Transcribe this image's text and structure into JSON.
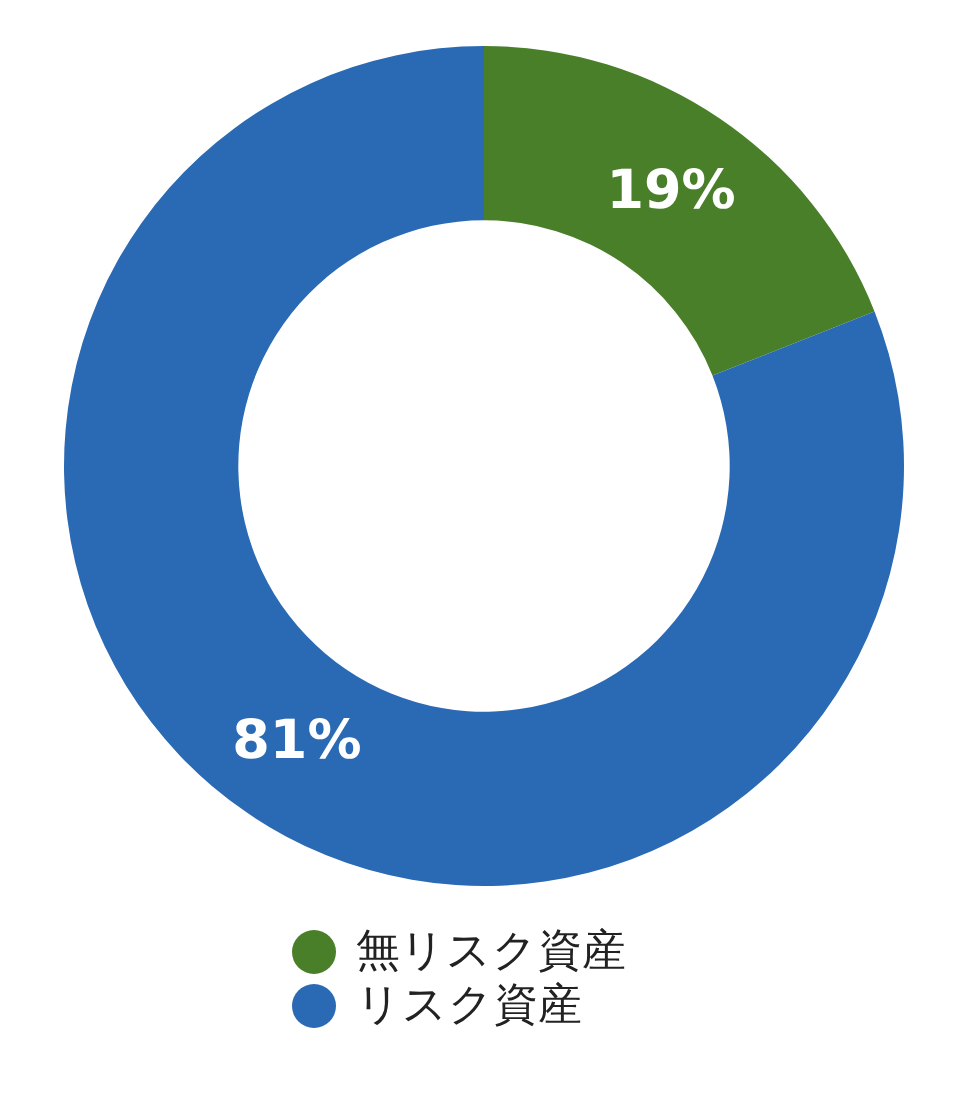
{
  "chart_data": {
    "type": "donut",
    "categories": [
      "無リスク資産",
      "リスク資産"
    ],
    "values": [
      19,
      81
    ],
    "colors": [
      "#4a7f2a",
      "#2a6ab4"
    ],
    "value_labels": [
      "19%",
      "81%"
    ],
    "legend": "bottom"
  }
}
